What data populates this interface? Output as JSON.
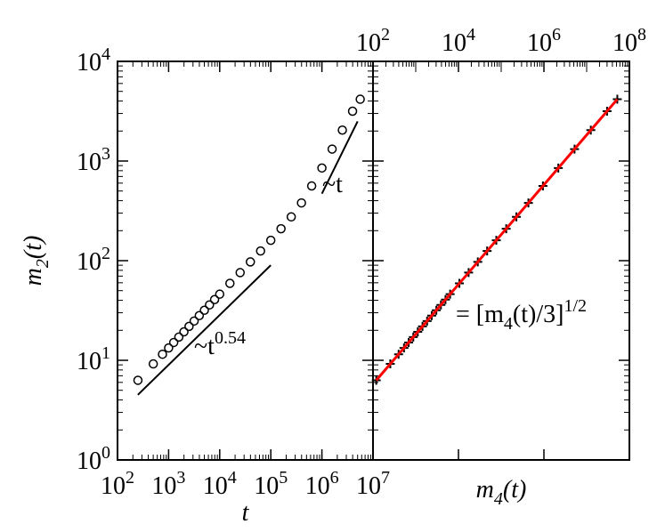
{
  "chart_data": [
    {
      "type": "scatter",
      "xscale": "log",
      "yscale": "log",
      "xlabel": "t",
      "ylabel": "m_{2}(t)",
      "xlim": [
        100,
        10000000
      ],
      "ylim": [
        1,
        10000
      ],
      "xticks": [
        {
          "value": 100,
          "label": "10^{2}"
        },
        {
          "value": 1000,
          "label": "10^{3}"
        },
        {
          "value": 10000,
          "label": "10^{4}"
        },
        {
          "value": 100000,
          "label": "10^{5}"
        },
        {
          "value": 1000000,
          "label": "10^{6}"
        },
        {
          "value": 10000000,
          "label": "10^{7}"
        }
      ],
      "yticks": [
        {
          "value": 1,
          "label": "10^{0}"
        },
        {
          "value": 10,
          "label": "10^{1}"
        },
        {
          "value": 100,
          "label": "10^{2}"
        },
        {
          "value": 1000,
          "label": "10^{3}"
        },
        {
          "value": 10000,
          "label": "10^{4}"
        }
      ],
      "minor_ticks": true,
      "series": [
        {
          "marker": "circle",
          "color": "#000000",
          "x": [
            251,
            501,
            759,
            1000,
            1259,
            1585,
            1995,
            2512,
            3162,
            3981,
            5012,
            6310,
            7943,
            10000,
            15849,
            25119,
            39811,
            63096,
            100000,
            158489,
            251189,
            398107,
            630957,
            1000000,
            1584893,
            2511886,
            3981072,
            5623413
          ],
          "values": [
            6.3,
            9.2,
            11.5,
            13.3,
            15.1,
            17.1,
            19.3,
            21.9,
            24.8,
            28.1,
            31.8,
            36.0,
            40.7,
            46.1,
            59.2,
            75.9,
            97.2,
            125,
            160,
            209,
            275,
            380,
            562,
            851,
            1318,
            2042,
            3162,
            4169
          ]
        },
        {
          "marker": "line",
          "color": "#000000",
          "x": [
            250,
            100000
          ],
          "values": [
            4.5,
            90
          ]
        },
        {
          "marker": "line",
          "color": "#000000",
          "x": [
            1000000,
            5000000
          ],
          "values": [
            470,
            2500
          ]
        }
      ],
      "annotations": [
        "~t^{0.54}",
        "~t"
      ]
    },
    {
      "type": "scatter",
      "xscale": "log",
      "yscale": "log",
      "xlabel": "m_{4}(t)",
      "x_axis_position": "top",
      "show_ytick_labels": false,
      "xlim": [
        100,
        100000000
      ],
      "ylim": [
        1,
        10000
      ],
      "xticks": [
        {
          "value": 100,
          "label": "10^{2}"
        },
        {
          "value": 10000,
          "label": "10^{4}"
        },
        {
          "value": 1000000,
          "label": "10^{6}"
        },
        {
          "value": 100000000,
          "label": "10^{8}"
        }
      ],
      "yticks": [
        1,
        10,
        100,
        1000,
        10000
      ],
      "minor_ticks": true,
      "series": [
        {
          "marker": "plus",
          "color": "#000000",
          "x": [
            119,
            254,
            397,
            531,
            684,
            877,
            1117,
            1439,
            1845,
            2369,
            3034,
            3888,
            4969,
            6376,
            10514,
            17282,
            28344,
            46875,
            76800,
            131043,
            226875,
            433200,
            947532,
            2172603,
            5211372,
            12509292,
            29995332,
            52141083
          ],
          "values": [
            6.3,
            9.2,
            11.5,
            13.3,
            15.1,
            17.1,
            19.3,
            21.9,
            24.8,
            28.1,
            31.8,
            36.0,
            40.7,
            46.1,
            59.2,
            75.9,
            97.2,
            125,
            160,
            209,
            275,
            380,
            562,
            851,
            1318,
            2042,
            3162,
            4169
          ]
        },
        {
          "marker": "line",
          "color": "#ff0000",
          "x": [
            119,
            52141083
          ],
          "values": [
            6.3,
            4169
          ]
        }
      ],
      "annotations": [
        {
          "text": "= [m_{4}(t)/3]^{1/2}",
          "color": "#ff0000"
        }
      ]
    }
  ]
}
